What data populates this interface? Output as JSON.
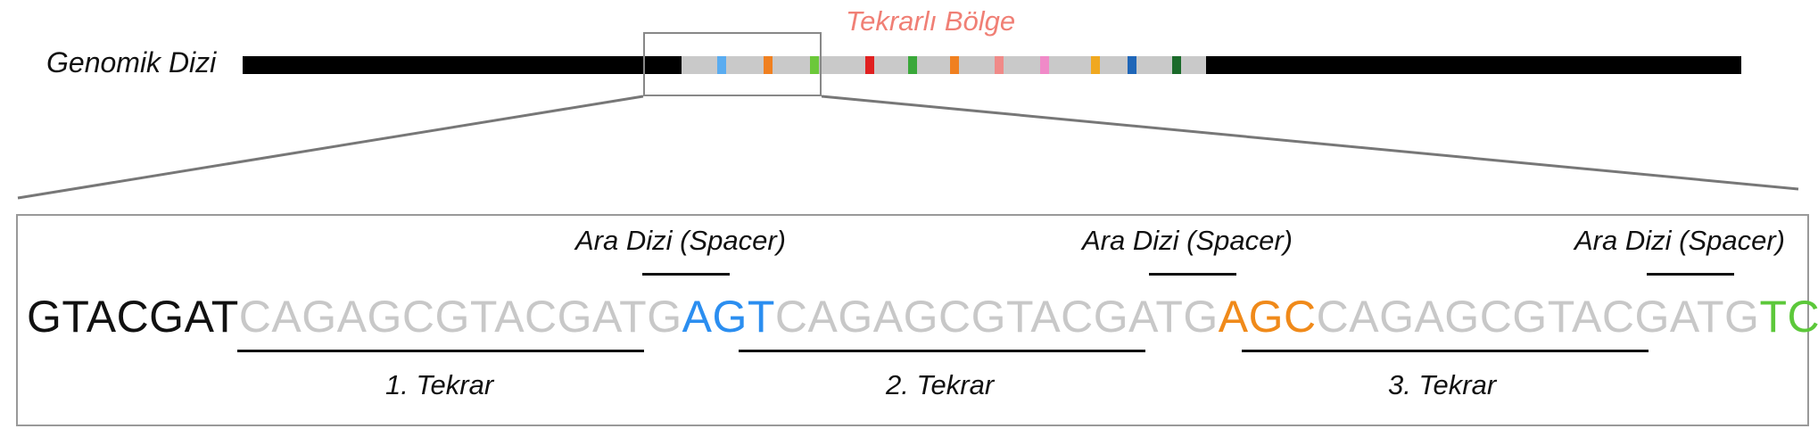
{
  "genome": {
    "label": "Genomik Dizi",
    "region_title": "Tekrarlı Bölge",
    "spacer_marker_colors": [
      "#5aacf0",
      "#f08020",
      "#6cc83a",
      "#e02020",
      "#3aa83a",
      "#f08020",
      "#f08a88",
      "#f08ac8",
      "#f0a820",
      "#1f66b8",
      "#1a6a2a"
    ]
  },
  "detail": {
    "sequence": {
      "leader": "GTACGAT",
      "units": [
        {
          "repeat": "CAGAGCGTACGATG",
          "spacer": "AGT",
          "spacer_color": "#2b8ef0"
        },
        {
          "repeat": "CAGAGCGTACGATG",
          "spacer": "AGC",
          "spacer_color": "#f08a1a"
        },
        {
          "repeat": "CAGAGCGTACGATG",
          "spacer": "TCA",
          "spacer_color": "#5cc83a"
        }
      ],
      "ellipsis": "…"
    },
    "spacer_labels": [
      "Ara Dizi (Spacer)",
      "Ara Dizi (Spacer)",
      "Ara Dizi (Spacer)"
    ],
    "repeat_labels": [
      "1. Tekrar",
      "2. Tekrar",
      "3. Tekrar"
    ]
  }
}
